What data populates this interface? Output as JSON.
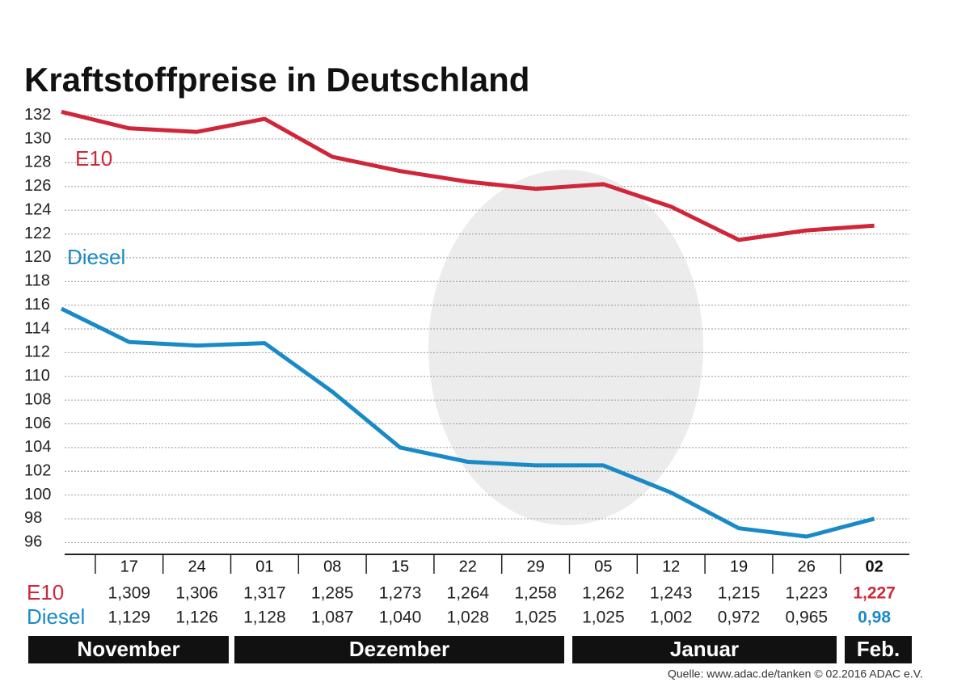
{
  "chart_data": {
    "type": "line",
    "title": "Kraftstoffpreise in Deutschland",
    "categories": [
      null,
      "17",
      "24",
      "01",
      "08",
      "15",
      "22",
      "29",
      "05",
      "12",
      "19",
      "26",
      "02"
    ],
    "series": [
      {
        "name": "E10",
        "color": "#d0263a",
        "values": [
          132.3,
          130.9,
          130.6,
          131.7,
          128.5,
          127.3,
          126.4,
          125.8,
          126.2,
          124.3,
          121.5,
          122.3,
          122.7
        ],
        "value_labels": [
          null,
          "1,309",
          "1,306",
          "1,317",
          "1,285",
          "1,273",
          "1,264",
          "1,258",
          "1,262",
          "1,243",
          "1,215",
          "1,223",
          "1,227"
        ]
      },
      {
        "name": "Diesel",
        "color": "#1a8ac6",
        "values": [
          115.7,
          112.9,
          112.6,
          112.8,
          108.7,
          104.0,
          102.8,
          102.5,
          102.5,
          100.2,
          97.2,
          96.5,
          98.0
        ],
        "value_labels": [
          null,
          "1,129",
          "1,126",
          "1,128",
          "1,087",
          "1,040",
          "1,028",
          "1,025",
          "1,025",
          "1,002",
          "0,972",
          "0,965",
          "0,98"
        ]
      }
    ],
    "ylim": [
      95,
      133
    ],
    "yticks": [
      96,
      98,
      100,
      102,
      104,
      106,
      108,
      110,
      112,
      114,
      116,
      118,
      120,
      122,
      124,
      126,
      128,
      130,
      132
    ],
    "grid": true,
    "months": [
      "November",
      "Dezember",
      "Januar",
      "Feb."
    ],
    "source": "Quelle: www.adac.de/tanken  © 02.2016  ADAC e.V."
  }
}
